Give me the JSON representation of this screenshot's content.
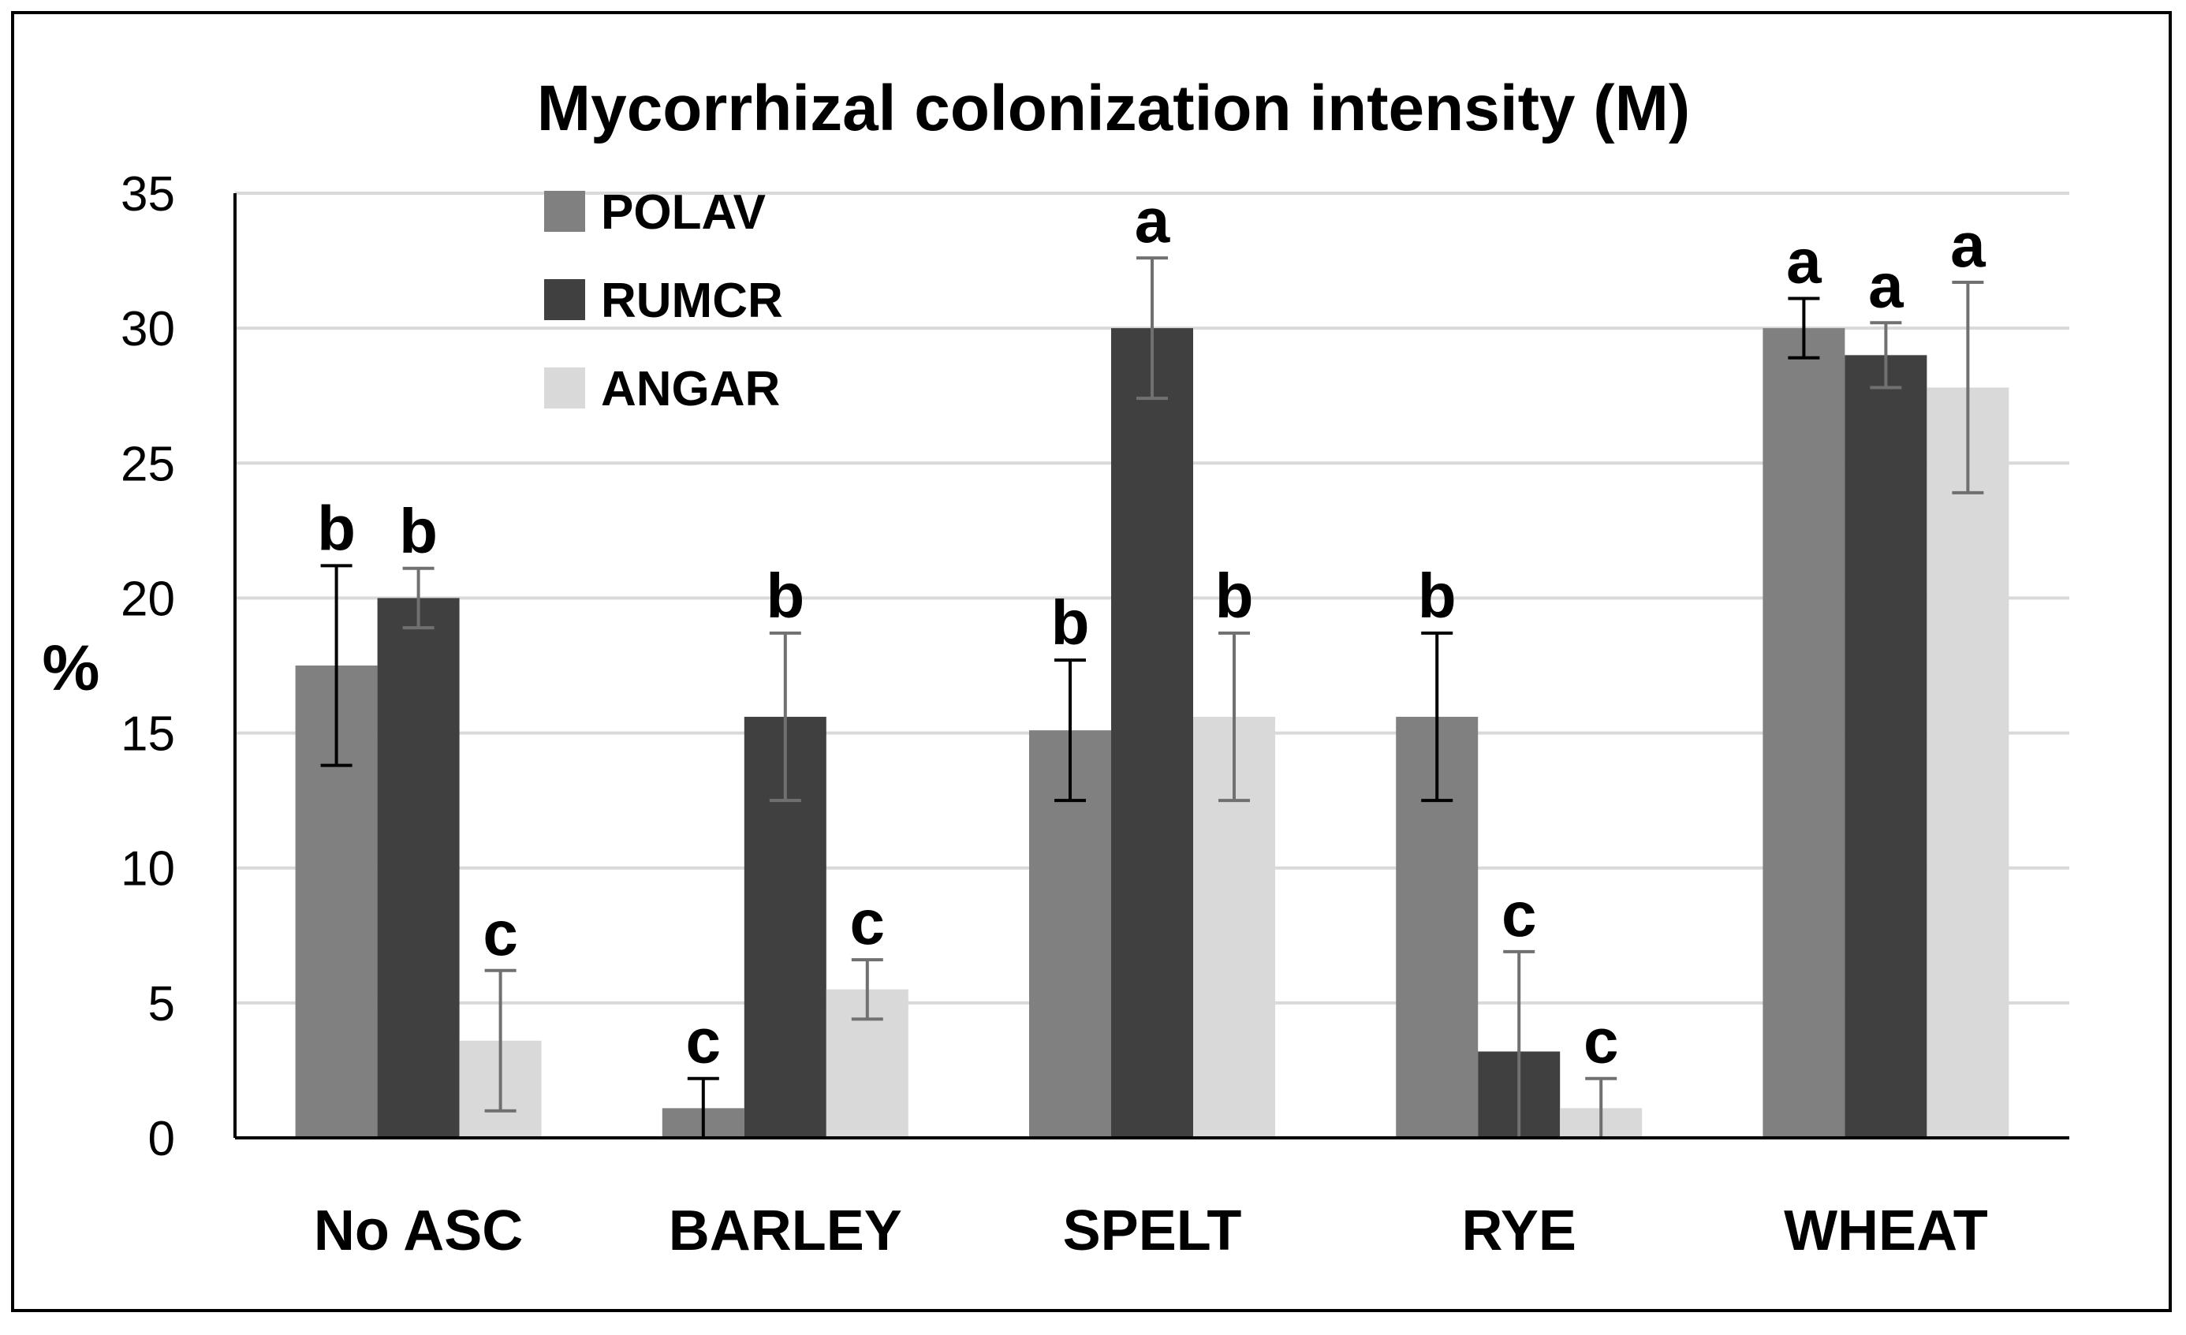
{
  "chart_data": {
    "type": "bar",
    "title": "Mycorrhizal colonization intensity (M)",
    "xlabel": "",
    "ylabel": "%",
    "ylim": [
      0,
      35
    ],
    "yticks": [
      "0",
      "5",
      "10",
      "15",
      "20",
      "25",
      "30",
      "35"
    ],
    "grid": true,
    "legend_position": "top-left",
    "categories": [
      "No ASC",
      "BARLEY",
      "SPELT",
      "RYE",
      "WHEAT"
    ],
    "series": [
      {
        "name": "POLAV",
        "color": "#808080",
        "values": [
          17.5,
          1.1,
          15.1,
          15.6,
          30.0
        ],
        "error": [
          3.7,
          1.1,
          2.6,
          3.1,
          1.1
        ],
        "error_color": "#000000",
        "letters": [
          "b",
          "c",
          "b",
          "b",
          "a"
        ]
      },
      {
        "name": "RUMCR",
        "color": "#404040",
        "values": [
          20.0,
          15.6,
          30.0,
          3.2,
          29.0
        ],
        "error": [
          1.1,
          3.1,
          2.6,
          3.7,
          1.2
        ],
        "error_color": "#707070",
        "letters": [
          "b",
          "b",
          "a",
          "c",
          "a"
        ]
      },
      {
        "name": "ANGAR",
        "color": "#d9d9d9",
        "values": [
          3.6,
          5.5,
          15.6,
          1.1,
          27.8
        ],
        "error": [
          2.6,
          1.1,
          3.1,
          1.1,
          3.9
        ],
        "error_color": "#707070",
        "letters": [
          "c",
          "c",
          "b",
          "c",
          "a"
        ]
      }
    ]
  }
}
